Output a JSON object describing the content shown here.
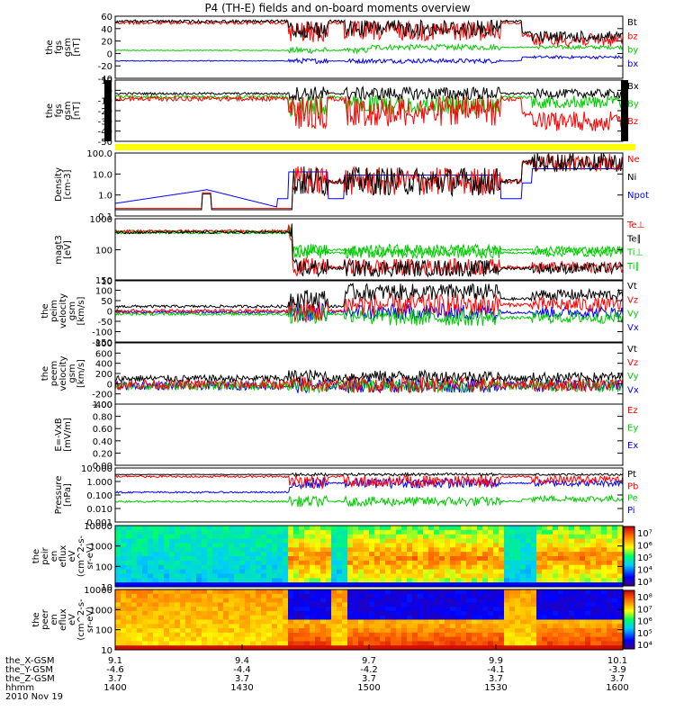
{
  "title": "P4 (TH-E) fields and on-board moments overview",
  "colors": {
    "black": "#000000",
    "red": "#ff0000",
    "green": "#00cc00",
    "blue": "#0000ff",
    "yellow": "#ffff00"
  },
  "chart_data": [
    {
      "type": "line",
      "ylabel": [
        "the",
        "fgs",
        "gsm",
        "[nT]"
      ],
      "yticks": [
        "60",
        "40",
        "20",
        "0",
        "-20",
        "-40"
      ],
      "legend": [
        [
          "Bt",
          "black"
        ],
        [
          "bz",
          "red"
        ],
        [
          "by",
          "green"
        ],
        [
          "bx",
          "blue"
        ]
      ]
    },
    {
      "type": "line",
      "ylabel": [
        "the",
        "fgs",
        "gsm",
        "[nT]"
      ],
      "yticks": [
        "10",
        "0",
        "-10",
        "-20",
        "-30",
        "-40",
        "-50"
      ],
      "legend": [
        [
          "Bx",
          "black"
        ],
        [
          "By",
          "green"
        ],
        [
          "Bz",
          "red"
        ]
      ]
    },
    {
      "type": "line",
      "scale": "log",
      "ylabel": [
        "Density",
        "[cm-3]"
      ],
      "yticks": [
        "100.0",
        "10.0",
        "1.0",
        "0.1"
      ],
      "legend": [
        [
          "Ne",
          "red"
        ],
        [
          "Ni",
          "black"
        ],
        [
          "Npot",
          "blue"
        ]
      ]
    },
    {
      "type": "line",
      "scale": "log",
      "ylabel": [
        "magt3",
        "[eV]"
      ],
      "yticks": [
        "1000",
        "100",
        "10"
      ],
      "legend": [
        [
          "Te⊥",
          "red"
        ],
        [
          "Te∥",
          "black"
        ],
        [
          "Ti⊥",
          "green"
        ],
        [
          "Ti∥",
          "green"
        ]
      ]
    },
    {
      "type": "line",
      "ylabel": [
        "the",
        "peim",
        "velocity",
        "gsm",
        "[km/s]"
      ],
      "yticks": [
        "150",
        "100",
        "50",
        "0",
        "-50",
        "-100",
        "-150"
      ],
      "legend": [
        [
          "Vt",
          "black"
        ],
        [
          "Vz",
          "red"
        ],
        [
          "Vy",
          "green"
        ],
        [
          "Vx",
          "blue"
        ]
      ]
    },
    {
      "type": "line",
      "ylabel": [
        "the",
        "peem",
        "velocity",
        "gsm",
        "[km/s]"
      ],
      "yticks": [
        "800",
        "600",
        "400",
        "200",
        "0",
        "-200",
        "-400"
      ],
      "legend": [
        [
          "Vt",
          "black"
        ],
        [
          "Vz",
          "red"
        ],
        [
          "Vy",
          "green"
        ],
        [
          "Vx",
          "blue"
        ]
      ]
    },
    {
      "type": "line",
      "ylabel": [
        "E=-VxB",
        "[mV/m]"
      ],
      "yticks": [
        "1.00",
        "0.80",
        "0.60",
        "0.40",
        "0.20",
        "0.00"
      ],
      "legend": [
        [
          "Ez",
          "red"
        ],
        [
          "Ey",
          "green"
        ],
        [
          "Ex",
          "blue"
        ]
      ]
    },
    {
      "type": "line",
      "scale": "log",
      "ylabel": [
        "Pressure",
        "[nPa]"
      ],
      "yticks": [
        "10.000",
        "1.000",
        "0.100",
        "0.010",
        "0.001"
      ],
      "legend": [
        [
          "Pt",
          "black"
        ],
        [
          "Pb",
          "red"
        ],
        [
          "Pe",
          "green"
        ],
        [
          "Pi",
          "blue"
        ]
      ]
    },
    {
      "type": "heatmap",
      "ylabel": [
        "the",
        "peir",
        "en",
        "eflux",
        "eV",
        "(cm^2-s-",
        "sr-eV)"
      ],
      "yticks": [
        "10000",
        "1000",
        "100",
        "10"
      ],
      "cbar": [
        "10⁷",
        "10⁶",
        "10⁵",
        "10⁴",
        "10³"
      ]
    },
    {
      "type": "heatmap",
      "ylabel": [
        "the",
        "peer",
        "en",
        "eflux",
        "eV",
        "(cm^2-s-",
        "sr-eV)"
      ],
      "yticks": [
        "10000",
        "1000",
        "100",
        "10"
      ],
      "cbar": [
        "10⁸",
        "10⁷",
        "10⁶",
        "10⁵",
        "10⁴"
      ]
    }
  ],
  "x_axis": {
    "ticks": [
      "1400",
      "1430",
      "1500",
      "1530",
      "1600"
    ],
    "rows": [
      {
        "label": "the_X-GSM",
        "values": [
          "9.1",
          "9.4",
          "9.7",
          "9.9",
          "10.1"
        ]
      },
      {
        "label": "the_Y-GSM",
        "values": [
          "-4.6",
          "-4.4",
          "-4.2",
          "-4.1",
          "-3.9"
        ]
      },
      {
        "label": "the_Z-GSM",
        "values": [
          "3.7",
          "3.7",
          "3.7",
          "3.7",
          "3.7"
        ]
      },
      {
        "label": "hhmm",
        "values": [
          "1400",
          "1430",
          "1500",
          "1530",
          "1600"
        ]
      }
    ],
    "date": "2010 Nov 19"
  }
}
